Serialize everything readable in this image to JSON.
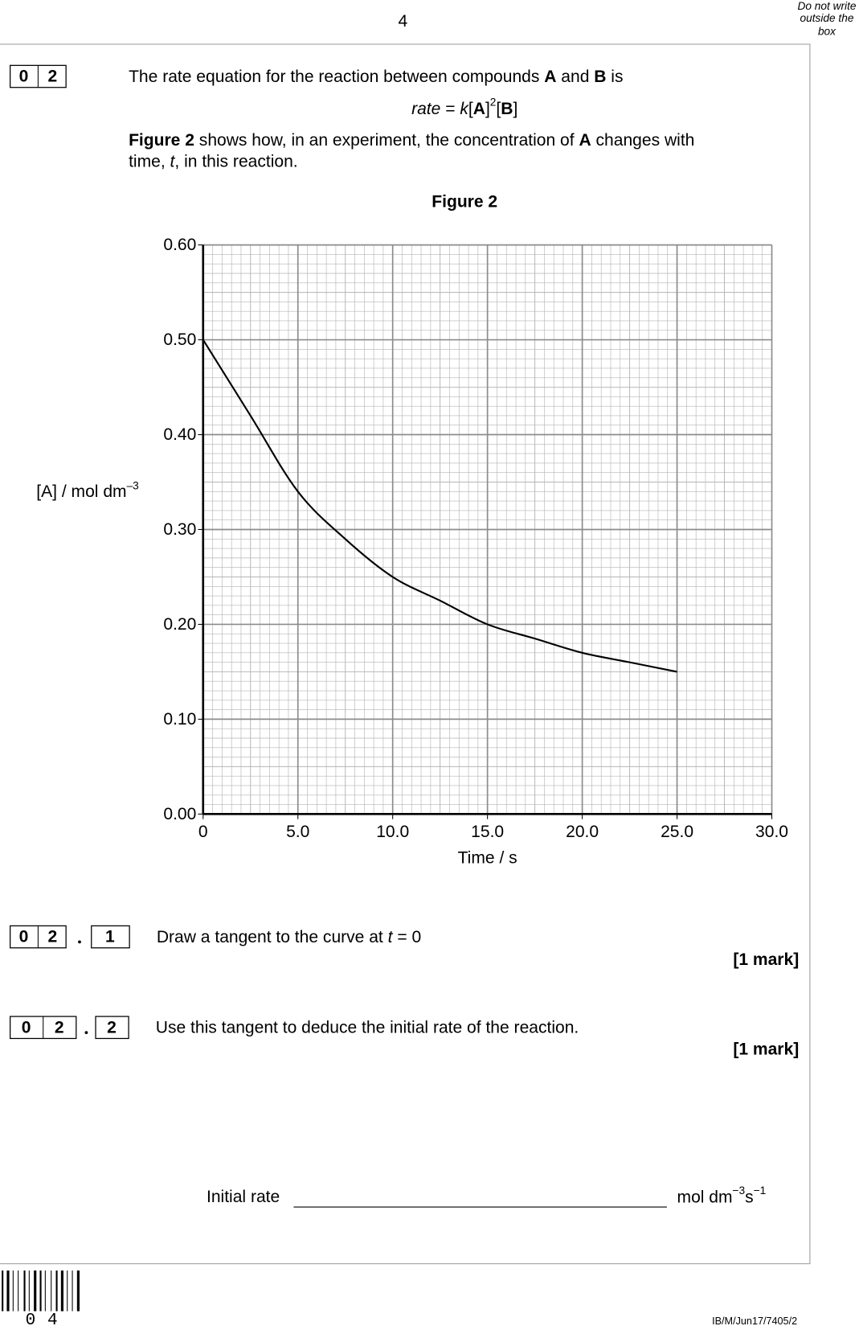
{
  "page_number": "4",
  "margin_note": [
    "Do not write",
    "outside the",
    "box"
  ],
  "question": {
    "number": [
      "0",
      "2"
    ],
    "intro": [
      "The rate equation for the reaction between compounds ",
      "A",
      " and ",
      "B",
      " is"
    ],
    "equation": [
      "rate",
      " = ",
      "k",
      "[",
      "A",
      "]",
      "2",
      "[",
      "B",
      "]"
    ],
    "figure_text": [
      [
        "Figure 2",
        " shows how, in an experiment, the concentration of ",
        "A",
        " changes with"
      ],
      [
        "time, ",
        "t",
        ", in this reaction."
      ]
    ]
  },
  "chart_data": {
    "type": "line",
    "title": "Figure 2",
    "x_label": "Time / s",
    "y_label": {
      "text": "[A] / mol dm",
      "sup": "–3"
    },
    "x": [
      0,
      2.5,
      5,
      7.5,
      10,
      12.5,
      15,
      17.5,
      20,
      22.5,
      25
    ],
    "values": [
      0.5,
      0.42,
      0.34,
      0.29,
      0.25,
      0.225,
      0.2,
      0.185,
      0.17,
      0.16,
      0.15
    ],
    "color": "#000000",
    "xlim": [
      0,
      30
    ],
    "ylim": [
      0,
      0.6
    ],
    "xticks": [
      0,
      {
        "value": 5,
        "label": "5.0"
      },
      {
        "value": 10,
        "label": "10.0"
      },
      {
        "value": 15,
        "label": "15.0"
      },
      {
        "value": 20,
        "label": "20.0"
      },
      {
        "value": 25,
        "label": "25.0"
      },
      {
        "value": 30,
        "label": "30.0"
      }
    ],
    "yticks": [
      {
        "value": 0,
        "label": "0.00"
      },
      {
        "value": 0.1,
        "label": "0.10"
      },
      {
        "value": 0.2,
        "label": "0.20"
      },
      {
        "value": 0.3,
        "label": "0.30"
      },
      {
        "value": 0.4,
        "label": "0.40"
      },
      {
        "value": 0.5,
        "label": "0.50"
      },
      {
        "value": 0.6,
        "label": "0.60"
      }
    ],
    "grid": true,
    "minor_grid": true
  },
  "parts": [
    {
      "number": [
        "0",
        "2"
      ],
      "sub": "1",
      "text": [
        "Draw a tangent to the curve at ",
        "t",
        " = 0"
      ],
      "marks": "[1 mark]"
    },
    {
      "number": [
        "0",
        "2"
      ],
      "sub": "2",
      "text": [
        "Use this tangent to deduce the initial rate of the reaction."
      ],
      "marks": "[1 mark]"
    }
  ],
  "answer": {
    "label": "Initial rate",
    "unit": [
      "mol dm",
      "−3",
      "s",
      "−1"
    ]
  },
  "footer": {
    "barcode_digits": [
      "0",
      "4"
    ],
    "reference": "IB/M/Jun17/7405/2"
  }
}
